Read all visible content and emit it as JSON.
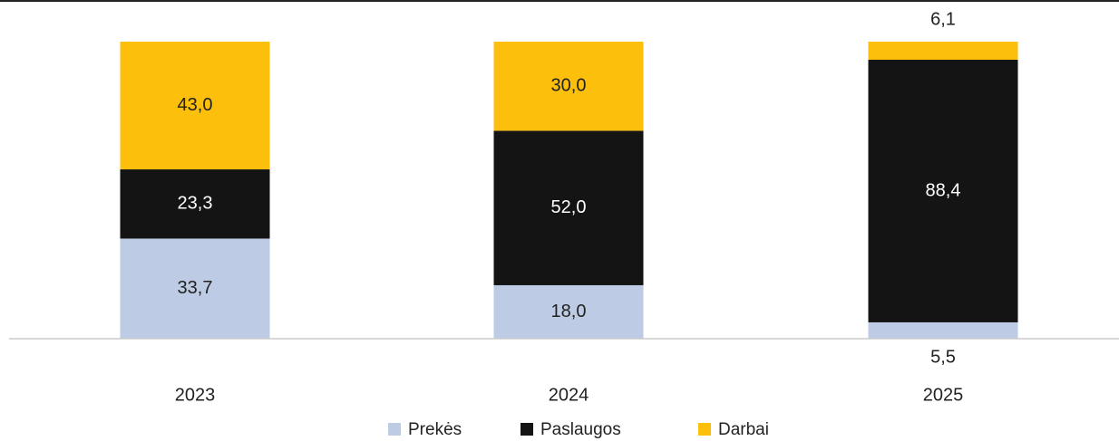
{
  "chart_data": {
    "type": "stacked_bar",
    "categories": [
      "2023",
      "2024",
      "2025"
    ],
    "series": [
      {
        "name": "Prekės",
        "color": "#bdcbe4",
        "values": [
          33.7,
          18.0,
          5.5
        ],
        "value_labels": [
          "33,7",
          "18,0",
          "5,5"
        ]
      },
      {
        "name": "Paslaugos",
        "color": "#141414",
        "values": [
          23.3,
          52.0,
          88.4
        ],
        "value_labels": [
          "23,3",
          "52,0",
          "88,4"
        ]
      },
      {
        "name": "Darbai",
        "color": "#fcbf0b",
        "values": [
          43.0,
          30.0,
          6.1
        ],
        "value_labels": [
          "43,0",
          "30,0",
          "6,1"
        ]
      }
    ],
    "ylim": [
      0,
      100
    ]
  }
}
